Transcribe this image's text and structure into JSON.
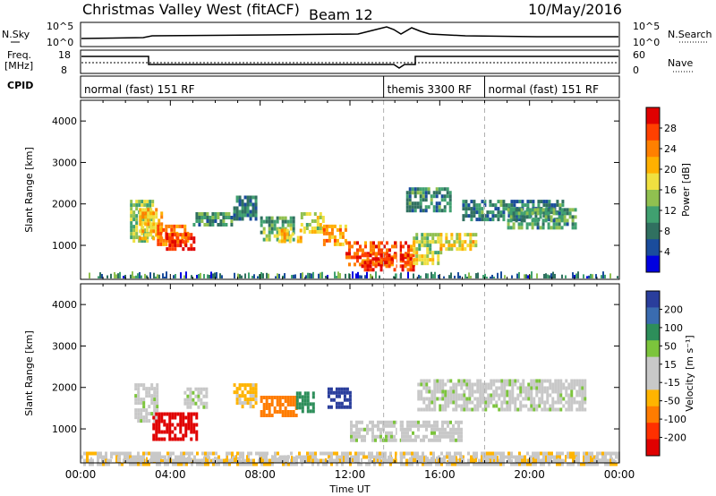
{
  "header": {
    "title": "Christmas Valley West (fitACF)",
    "beam": "Beam 12",
    "date": "10/May/2016"
  },
  "panels": {
    "nsky": {
      "label": "N.Sky",
      "ticks": [
        "10^5",
        "10^0"
      ],
      "right_label": "N.Search"
    },
    "freq": {
      "label_lines": [
        "Freq.",
        "[MHz]"
      ],
      "left_ticks": [
        "18",
        "8"
      ],
      "right_ticks": [
        "60",
        "0"
      ],
      "right_label": "Nave"
    },
    "cpid": {
      "label": "CPID",
      "segments": [
        {
          "text": "normal (fast) 151 RF",
          "start_h": 0,
          "end_h": 13.5
        },
        {
          "text": "themis 3300 RF",
          "start_h": 13.5,
          "end_h": 18.0
        },
        {
          "text": "normal (fast) 151 RF",
          "start_h": 18.0,
          "end_h": 24
        }
      ]
    }
  },
  "chart_data": [
    {
      "type": "heatmap",
      "name": "power",
      "ylabel": "Slant Range [km]",
      "colorbar_label": "Power [dB]",
      "colorbar_ticks": [
        "28",
        "24",
        "20",
        "16",
        "12",
        "8",
        "4"
      ],
      "colorbar_colors": [
        "#e00000",
        "#ff4000",
        "#ff8000",
        "#ffb000",
        "#f0e040",
        "#90c050",
        "#40a070",
        "#307060",
        "#1a4c9c",
        "#0000e0"
      ],
      "ylim": [
        180,
        4500
      ],
      "yticks": [
        1000,
        2000,
        3000,
        4000
      ],
      "xlim_hours": [
        0,
        24
      ],
      "regions": [
        {
          "t": [
            2.2,
            3.2
          ],
          "r": [
            1100,
            2100
          ],
          "v": 16
        },
        {
          "t": [
            2.6,
            3.6
          ],
          "r": [
            1200,
            1900
          ],
          "v": 22
        },
        {
          "t": [
            3.4,
            4.8
          ],
          "r": [
            1000,
            1500
          ],
          "v": 26
        },
        {
          "t": [
            3.8,
            5.0
          ],
          "r": [
            900,
            1300
          ],
          "v": 30
        },
        {
          "t": [
            5.0,
            6.8
          ],
          "r": [
            1500,
            1800
          ],
          "v": 12
        },
        {
          "t": [
            6.8,
            7.8
          ],
          "r": [
            1600,
            2200
          ],
          "v": 10
        },
        {
          "t": [
            8.0,
            9.5
          ],
          "r": [
            1100,
            1700
          ],
          "v": 14
        },
        {
          "t": [
            8.8,
            9.8
          ],
          "r": [
            1100,
            1400
          ],
          "v": 22
        },
        {
          "t": [
            9.8,
            10.8
          ],
          "r": [
            1300,
            1800
          ],
          "v": 18
        },
        {
          "t": [
            10.8,
            11.8
          ],
          "r": [
            1000,
            1500
          ],
          "v": 24
        },
        {
          "t": [
            11.8,
            14.8
          ],
          "r": [
            500,
            1100
          ],
          "v": 28
        },
        {
          "t": [
            12.5,
            14.8
          ],
          "r": [
            400,
            800
          ],
          "v": 30
        },
        {
          "t": [
            14.8,
            16.0
          ],
          "r": [
            600,
            1300
          ],
          "v": 18
        },
        {
          "t": [
            14.5,
            16.5
          ],
          "r": [
            1800,
            2400
          ],
          "v": 11
        },
        {
          "t": [
            16.0,
            17.6
          ],
          "r": [
            900,
            1300
          ],
          "v": 20
        },
        {
          "t": [
            17.0,
            21.5
          ],
          "r": [
            1600,
            2100
          ],
          "v": 10
        },
        {
          "t": [
            19.0,
            22.0
          ],
          "r": [
            1400,
            1900
          ],
          "v": 12
        }
      ]
    },
    {
      "type": "heatmap",
      "name": "velocity",
      "ylabel": "Slant Range [km]",
      "colorbar_label": "Velocity [m s⁻¹]",
      "colorbar_ticks": [
        "200",
        "100",
        "50",
        "15",
        "-15",
        "-50",
        "-100",
        "-200"
      ],
      "colorbar_colors": [
        "#2a3e9c",
        "#3a6cb0",
        "#2d8e5a",
        "#7cc43c",
        "#c8c8c8",
        "#c8c8c8",
        "#ffb400",
        "#ff7c00",
        "#ff3000",
        "#e00000"
      ],
      "ylim": [
        180,
        4500
      ],
      "yticks": [
        1000,
        2000,
        3000,
        4000
      ],
      "xlim_hours": [
        0,
        24
      ],
      "xticks": [
        "00:00",
        "04:00",
        "08:00",
        "12:00",
        "16:00",
        "20:00",
        "00:00"
      ],
      "xlabel": "Time UT",
      "regions": [
        {
          "t": [
            2.4,
            3.4
          ],
          "r": [
            1200,
            2100
          ],
          "v": 0
        },
        {
          "t": [
            3.2,
            5.2
          ],
          "r": [
            750,
            1400
          ],
          "v": -220
        },
        {
          "t": [
            4.6,
            5.6
          ],
          "r": [
            1500,
            2000
          ],
          "v": 0
        },
        {
          "t": [
            6.8,
            7.8
          ],
          "r": [
            1500,
            2100
          ],
          "v": -60
        },
        {
          "t": [
            8.0,
            9.6
          ],
          "r": [
            1300,
            1800
          ],
          "v": -120
        },
        {
          "t": [
            9.6,
            10.4
          ],
          "r": [
            1400,
            1900
          ],
          "v": 80
        },
        {
          "t": [
            11.0,
            12.0
          ],
          "r": [
            1500,
            2000
          ],
          "v": 220
        },
        {
          "t": [
            12.0,
            17.0
          ],
          "r": [
            700,
            1200
          ],
          "v": 0
        },
        {
          "t": [
            15.0,
            22.5
          ],
          "r": [
            1500,
            2200
          ],
          "v": 0
        },
        {
          "t": [
            0,
            24
          ],
          "r": [
            180,
            450
          ],
          "v": -40
        }
      ]
    }
  ]
}
